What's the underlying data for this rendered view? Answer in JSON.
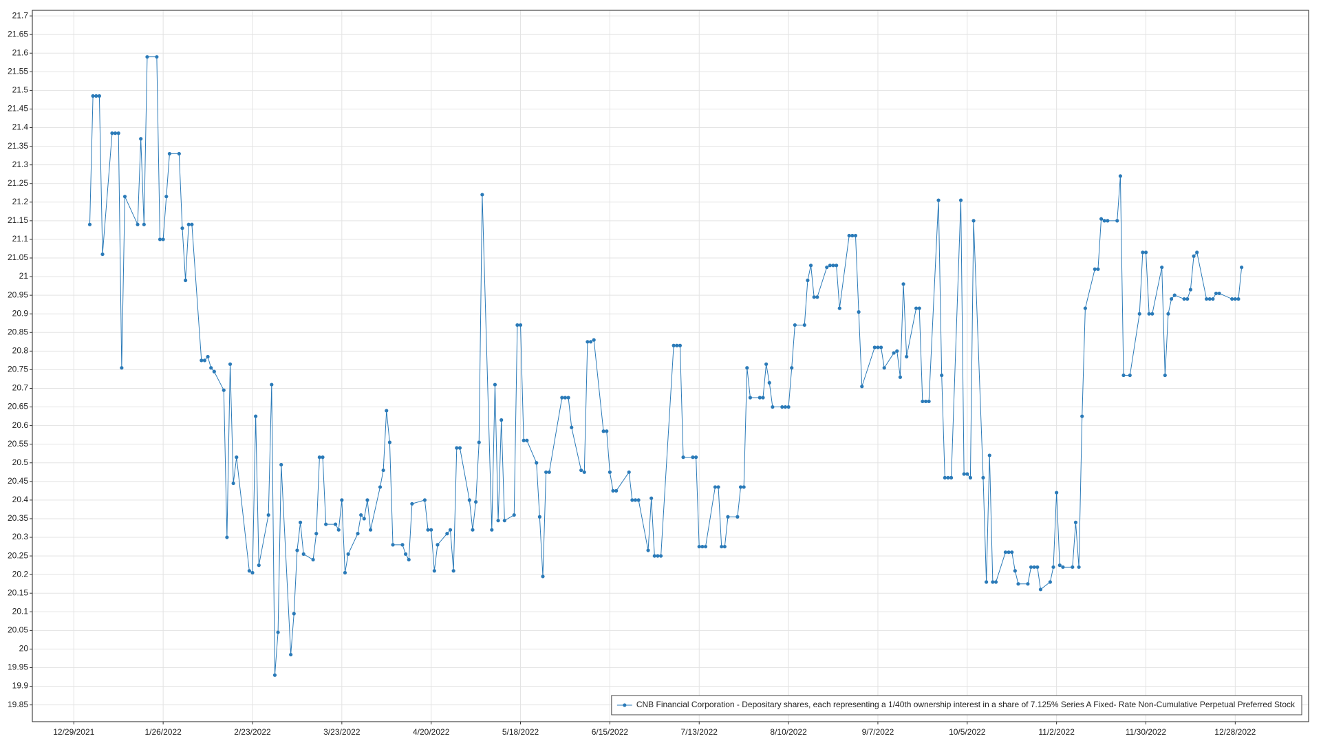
{
  "chart_data": {
    "type": "line",
    "x": [
      "1/3/2022",
      "1/4/2022",
      "1/5/2022",
      "1/6/2022",
      "1/7/2022",
      "1/10/2022",
      "1/11/2022",
      "1/12/2022",
      "1/13/2022",
      "1/14/2022",
      "1/18/2022",
      "1/19/2022",
      "1/20/2022",
      "1/21/2022",
      "1/24/2022",
      "1/25/2022",
      "1/26/2022",
      "1/27/2022",
      "1/28/2022",
      "1/31/2022",
      "2/1/2022",
      "2/2/2022",
      "2/3/2022",
      "2/4/2022",
      "2/7/2022",
      "2/8/2022",
      "2/9/2022",
      "2/10/2022",
      "2/11/2022",
      "2/14/2022",
      "2/15/2022",
      "2/16/2022",
      "2/17/2022",
      "2/18/2022",
      "2/22/2022",
      "2/23/2022",
      "2/24/2022",
      "2/25/2022",
      "2/28/2022",
      "3/1/2022",
      "3/2/2022",
      "3/3/2022",
      "3/4/2022",
      "3/7/2022",
      "3/8/2022",
      "3/9/2022",
      "3/10/2022",
      "3/11/2022",
      "3/14/2022",
      "3/15/2022",
      "3/16/2022",
      "3/17/2022",
      "3/18/2022",
      "3/21/2022",
      "3/22/2022",
      "3/23/2022",
      "3/24/2022",
      "3/25/2022",
      "3/28/2022",
      "3/29/2022",
      "3/30/2022",
      "3/31/2022",
      "4/1/2022",
      "4/4/2022",
      "4/5/2022",
      "4/6/2022",
      "4/7/2022",
      "4/8/2022",
      "4/11/2022",
      "4/12/2022",
      "4/13/2022",
      "4/14/2022",
      "4/18/2022",
      "4/19/2022",
      "4/20/2022",
      "4/21/2022",
      "4/22/2022",
      "4/25/2022",
      "4/26/2022",
      "4/27/2022",
      "4/28/2022",
      "4/29/2022",
      "5/2/2022",
      "5/3/2022",
      "5/4/2022",
      "5/5/2022",
      "5/6/2022",
      "5/9/2022",
      "5/10/2022",
      "5/11/2022",
      "5/12/2022",
      "5/13/2022",
      "5/16/2022",
      "5/17/2022",
      "5/18/2022",
      "5/19/2022",
      "5/20/2022",
      "5/23/2022",
      "5/24/2022",
      "5/25/2022",
      "5/26/2022",
      "5/27/2022",
      "5/31/2022",
      "6/1/2022",
      "6/2/2022",
      "6/3/2022",
      "6/6/2022",
      "6/7/2022",
      "6/8/2022",
      "6/9/2022",
      "6/10/2022",
      "6/13/2022",
      "6/14/2022",
      "6/15/2022",
      "6/16/2022",
      "6/17/2022",
      "6/21/2022",
      "6/22/2022",
      "6/23/2022",
      "6/24/2022",
      "6/27/2022",
      "6/28/2022",
      "6/29/2022",
      "6/30/2022",
      "7/1/2022",
      "7/5/2022",
      "7/6/2022",
      "7/7/2022",
      "7/8/2022",
      "7/11/2022",
      "7/12/2022",
      "7/13/2022",
      "7/14/2022",
      "7/15/2022",
      "7/18/2022",
      "7/19/2022",
      "7/20/2022",
      "7/21/2022",
      "7/22/2022",
      "7/25/2022",
      "7/26/2022",
      "7/27/2022",
      "7/28/2022",
      "7/29/2022",
      "8/1/2022",
      "8/2/2022",
      "8/3/2022",
      "8/4/2022",
      "8/5/2022",
      "8/8/2022",
      "8/9/2022",
      "8/10/2022",
      "8/11/2022",
      "8/12/2022",
      "8/15/2022",
      "8/16/2022",
      "8/17/2022",
      "8/18/2022",
      "8/19/2022",
      "8/22/2022",
      "8/23/2022",
      "8/24/2022",
      "8/25/2022",
      "8/26/2022",
      "8/29/2022",
      "8/30/2022",
      "8/31/2022",
      "9/1/2022",
      "9/2/2022",
      "9/6/2022",
      "9/7/2022",
      "9/8/2022",
      "9/9/2022",
      "9/12/2022",
      "9/13/2022",
      "9/14/2022",
      "9/15/2022",
      "9/16/2022",
      "9/19/2022",
      "9/20/2022",
      "9/21/2022",
      "9/22/2022",
      "9/23/2022",
      "9/26/2022",
      "9/27/2022",
      "9/28/2022",
      "9/29/2022",
      "9/30/2022",
      "10/3/2022",
      "10/4/2022",
      "10/5/2022",
      "10/6/2022",
      "10/7/2022",
      "10/10/2022",
      "10/11/2022",
      "10/12/2022",
      "10/13/2022",
      "10/14/2022",
      "10/17/2022",
      "10/18/2022",
      "10/19/2022",
      "10/20/2022",
      "10/21/2022",
      "10/24/2022",
      "10/25/2022",
      "10/26/2022",
      "10/27/2022",
      "10/28/2022",
      "10/31/2022",
      "11/1/2022",
      "11/2/2022",
      "11/3/2022",
      "11/4/2022",
      "11/7/2022",
      "11/8/2022",
      "11/9/2022",
      "11/10/2022",
      "11/11/2022",
      "11/14/2022",
      "11/15/2022",
      "11/16/2022",
      "11/17/2022",
      "11/18/2022",
      "11/21/2022",
      "11/22/2022",
      "11/23/2022",
      "11/25/2022",
      "11/28/2022",
      "11/29/2022",
      "11/30/2022",
      "12/1/2022",
      "12/2/2022",
      "12/5/2022",
      "12/6/2022",
      "12/7/2022",
      "12/8/2022",
      "12/9/2022",
      "12/12/2022",
      "12/13/2022",
      "12/14/2022",
      "12/15/2022",
      "12/16/2022",
      "12/19/2022",
      "12/20/2022",
      "12/21/2022",
      "12/22/2022",
      "12/23/2022",
      "12/27/2022",
      "12/28/2022",
      "12/29/2022",
      "12/30/2022"
    ],
    "series": [
      {
        "name": "CNB Financial Corporation - Depositary shares, each representing a 1/40th ownership interest in a share of 7.125% Series A Fixed- Rate Non-Cumulative Perpetual Preferred Stock",
        "color": "#2a7ab8",
        "values": [
          21.14,
          21.485,
          21.485,
          21.485,
          21.06,
          21.385,
          21.385,
          21.385,
          20.755,
          21.215,
          21.14,
          21.37,
          21.14,
          21.59,
          21.59,
          21.1,
          21.1,
          21.215,
          21.33,
          21.33,
          21.13,
          20.99,
          21.14,
          21.14,
          20.775,
          20.775,
          20.785,
          20.755,
          20.745,
          20.695,
          20.3,
          20.765,
          20.445,
          20.515,
          20.21,
          20.205,
          20.625,
          20.225,
          20.36,
          20.71,
          19.93,
          20.045,
          20.495,
          19.985,
          20.095,
          20.265,
          20.34,
          20.255,
          20.24,
          20.31,
          20.515,
          20.515,
          20.335,
          20.335,
          20.32,
          20.4,
          20.205,
          20.255,
          20.31,
          20.36,
          20.35,
          20.4,
          20.32,
          20.435,
          20.48,
          20.64,
          20.555,
          20.28,
          20.28,
          20.255,
          20.24,
          20.39,
          20.4,
          20.32,
          20.32,
          20.21,
          20.28,
          20.31,
          20.32,
          20.21,
          20.54,
          20.54,
          20.4,
          20.32,
          20.395,
          20.555,
          21.22,
          20.32,
          20.71,
          20.345,
          20.615,
          20.345,
          20.36,
          20.87,
          20.87,
          20.56,
          20.56,
          20.5,
          20.355,
          20.195,
          20.475,
          20.475,
          20.675,
          20.675,
          20.675,
          20.595,
          20.48,
          20.475,
          20.825,
          20.825,
          20.83,
          20.585,
          20.585,
          20.475,
          20.425,
          20.425,
          20.475,
          20.4,
          20.4,
          20.4,
          20.265,
          20.405,
          20.25,
          20.25,
          20.25,
          20.815,
          20.815,
          20.815,
          20.515,
          20.515,
          20.515,
          20.275,
          20.275,
          20.275,
          20.435,
          20.435,
          20.275,
          20.275,
          20.355,
          20.355,
          20.435,
          20.435,
          20.755,
          20.675,
          20.675,
          20.675,
          20.765,
          20.715,
          20.65,
          20.65,
          20.65,
          20.65,
          20.755,
          20.87,
          20.87,
          20.99,
          21.03,
          20.945,
          20.945,
          21.025,
          21.03,
          21.03,
          21.03,
          20.915,
          21.11,
          21.11,
          21.11,
          20.905,
          20.705,
          20.81,
          20.81,
          20.81,
          20.755,
          20.795,
          20.8,
          20.73,
          20.98,
          20.785,
          20.915,
          20.915,
          20.665,
          20.665,
          20.665,
          21.205,
          20.735,
          20.46,
          20.46,
          20.46,
          21.205,
          20.47,
          20.47,
          20.46,
          21.15,
          20.46,
          20.18,
          20.52,
          20.18,
          20.18,
          20.26,
          20.26,
          20.26,
          20.21,
          20.175,
          20.175,
          20.22,
          20.22,
          20.22,
          20.16,
          20.18,
          20.22,
          20.42,
          20.225,
          20.22,
          20.22,
          20.34,
          20.22,
          20.625,
          20.915,
          21.02,
          21.02,
          21.155,
          21.15,
          21.15,
          21.15,
          21.27,
          20.735,
          20.735,
          20.9,
          21.065,
          21.065,
          20.9,
          20.9,
          21.025,
          20.735,
          20.9,
          20.94,
          20.95,
          20.94,
          20.94,
          20.965,
          21.055,
          21.065,
          20.94,
          20.94,
          20.94,
          20.955,
          20.955,
          20.94,
          20.94,
          20.94,
          21.025
        ]
      }
    ],
    "xlim": [
      "12/16/2021",
      "1/20/2023"
    ],
    "xticks": [
      "12/29/2021",
      "1/26/2022",
      "2/23/2022",
      "3/23/2022",
      "4/20/2022",
      "5/18/2022",
      "6/15/2022",
      "7/13/2022",
      "8/10/2022",
      "9/7/2022",
      "10/5/2022",
      "11/2/2022",
      "11/30/2022",
      "12/28/2022"
    ],
    "ylim": [
      19.805,
      21.715
    ],
    "yticks": [
      19.85,
      19.9,
      19.95,
      20,
      20.05,
      20.1,
      20.15,
      20.2,
      20.25,
      20.3,
      20.35,
      20.4,
      20.45,
      20.5,
      20.55,
      20.6,
      20.65,
      20.7,
      20.75,
      20.8,
      20.85,
      20.9,
      20.95,
      21,
      21.05,
      21.1,
      21.15,
      21.2,
      21.25,
      21.3,
      21.35,
      21.4,
      21.45,
      21.5,
      21.55,
      21.6,
      21.65,
      21.7
    ],
    "grid": true,
    "legend": "lower right"
  }
}
